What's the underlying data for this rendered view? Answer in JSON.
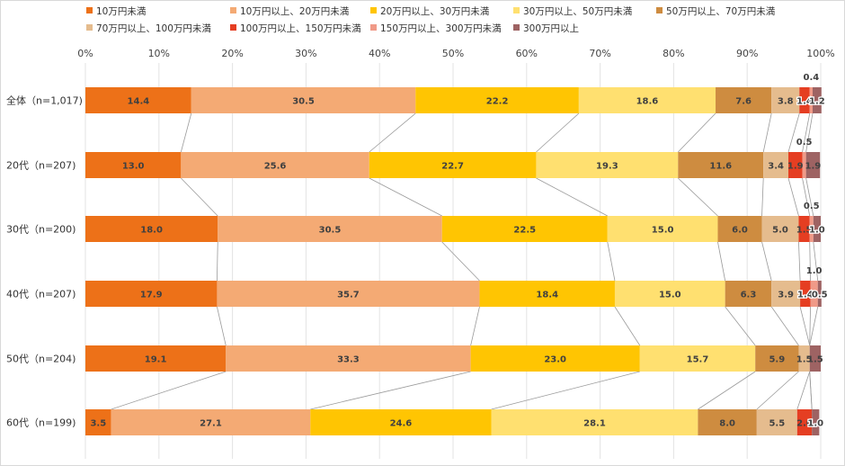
{
  "chart_data": {
    "type": "bar",
    "orientation": "horizontal",
    "stacked": true,
    "normalized": true,
    "xlim": [
      0,
      100
    ],
    "x_ticks": [
      "0%",
      "10%",
      "20%",
      "30%",
      "40%",
      "50%",
      "60%",
      "70%",
      "80%",
      "90%",
      "100%"
    ],
    "categories": [
      "全体（n=1,017)",
      "20代（n=207)",
      "30代（n=200)",
      "40代（n=207)",
      "50代（n=204)",
      "60代（n=199)"
    ],
    "series": [
      {
        "name": "10万円未満",
        "color": "#ed7118",
        "values": [
          14.4,
          13.0,
          18.0,
          17.9,
          19.1,
          3.5
        ],
        "labels": [
          "14.4",
          "13.0",
          "18.0",
          "17.9",
          "19.1",
          "3.5"
        ]
      },
      {
        "name": "10万円以上、20万円未満",
        "color": "#f4aa74",
        "values": [
          30.5,
          25.6,
          30.5,
          35.7,
          33.3,
          27.1
        ],
        "labels": [
          "30.5",
          "25.6",
          "30.5",
          "35.7",
          "33.3",
          "27.1"
        ]
      },
      {
        "name": "20万円以上、30万円未満",
        "color": "#ffc502",
        "values": [
          22.2,
          22.7,
          22.5,
          18.4,
          23.0,
          24.6
        ],
        "labels": [
          "22.2",
          "22.7",
          "22.5",
          "18.4",
          "23.0",
          "24.6"
        ]
      },
      {
        "name": "30万円以上、50万円未満",
        "color": "#ffe070",
        "values": [
          18.6,
          19.3,
          15.0,
          15.0,
          15.7,
          28.1
        ],
        "labels": [
          "18.6",
          "19.3",
          "15.0",
          "15.0",
          "15.7",
          "28.1"
        ]
      },
      {
        "name": "50万円以上、70万円未満",
        "color": "#ce8c40",
        "values": [
          7.6,
          11.6,
          6.0,
          6.3,
          5.9,
          8.0
        ],
        "labels": [
          "7.6",
          "11.6",
          "6.0",
          "6.3",
          "5.9",
          "8.0"
        ]
      },
      {
        "name": "70万円以上、100万円未満",
        "color": "#e5bc8e",
        "values": [
          3.8,
          3.4,
          5.0,
          3.9,
          1.5,
          5.5
        ],
        "labels": [
          "3.8",
          "3.4",
          "5.0",
          "3.9",
          "1.5",
          "5.5"
        ]
      },
      {
        "name": "100万円以上、150万円未満",
        "color": "#e53e22",
        "values": [
          1.4,
          1.9,
          1.5,
          1.4,
          0.0,
          2.0
        ],
        "labels": [
          "1.4",
          "1.9",
          "1.5",
          "1.4",
          "",
          "2.0"
        ]
      },
      {
        "name": "150万円以上、300万円未満",
        "color": "#f09a88",
        "values": [
          0.4,
          0.5,
          0.5,
          1.0,
          0.0,
          0.0
        ],
        "labels": [
          "0.4",
          "0.5",
          "0.5",
          "1.0",
          "",
          ""
        ]
      },
      {
        "name": "300万円以上",
        "color": "#9e6363",
        "values": [
          1.2,
          1.9,
          1.0,
          0.5,
          1.5,
          1.0
        ],
        "labels": [
          "1.2",
          "1.9",
          "1.0",
          "0.5",
          "1.5",
          "1.0"
        ]
      }
    ]
  }
}
